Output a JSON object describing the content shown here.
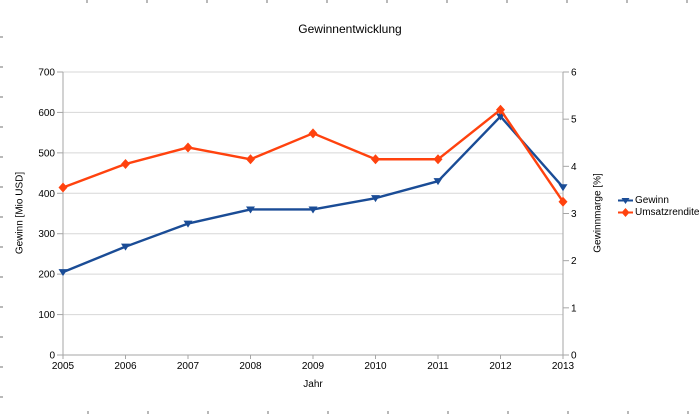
{
  "chart_data": {
    "type": "line",
    "title": "Gewinnentwicklung",
    "xlabel": "Jahr",
    "ylabel_left": "Gewinn [Mio USD]",
    "ylabel_right": "Gewinnmarge [%]",
    "categories": [
      "2005",
      "2006",
      "2007",
      "2008",
      "2009",
      "2010",
      "2011",
      "2012",
      "2013"
    ],
    "series": [
      {
        "name": "Gewinn",
        "axis": "left",
        "color": "#1a4c96",
        "marker": "triangle-down",
        "values": [
          205,
          268,
          325,
          360,
          360,
          388,
          430,
          590,
          415
        ]
      },
      {
        "name": "Umsatzrendite",
        "axis": "right",
        "color": "#ff420e",
        "marker": "diamond",
        "values": [
          3.55,
          4.05,
          4.4,
          4.15,
          4.7,
          4.15,
          4.15,
          5.2,
          3.25
        ]
      }
    ],
    "left_axis": {
      "min": 0,
      "max": 700,
      "step": 100
    },
    "right_axis": {
      "min": 0,
      "max": 6,
      "step": 1
    },
    "grid": "horizontal",
    "legend_position": "right",
    "style": {
      "gridline_color": "#d7d7d7",
      "axis_color": "#a6a6a6",
      "text_color": "#000000",
      "background": "#ffffff"
    }
  }
}
